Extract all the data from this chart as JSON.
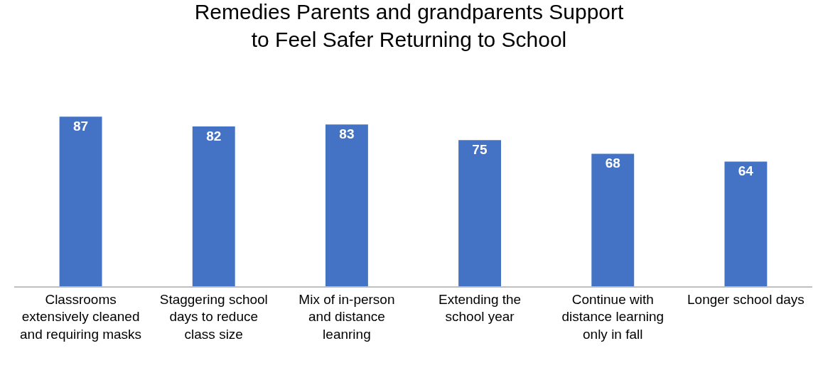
{
  "chart_data": {
    "type": "bar",
    "title": "Remedies Parents and grandparents Support to Feel Safer Returning to School",
    "categories": [
      "Classrooms extensively cleaned and requiring masks",
      "Staggering school days to reduce class size",
      "Mix of in-person and distance leanring",
      "Extending the school year",
      "Continue with distance learning only in fall",
      "Longer school days"
    ],
    "values": [
      87,
      82,
      83,
      75,
      68,
      64
    ],
    "color": "#4472c4",
    "data_labels": true,
    "grid": false,
    "legend": false
  }
}
